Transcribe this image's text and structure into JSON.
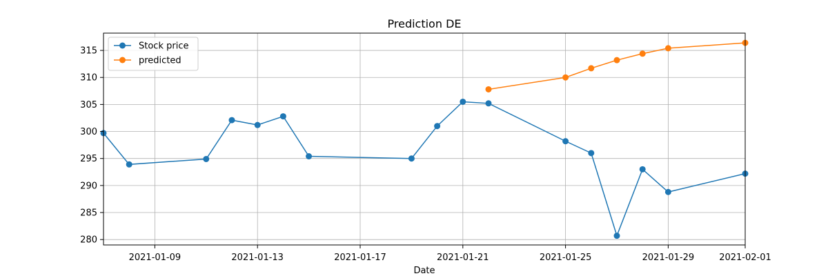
{
  "chart_data": {
    "type": "line",
    "title": "Prediction DE",
    "xlabel": "Date",
    "ylabel": "",
    "x_type": "date",
    "xlim": [
      "2021-01-07",
      "2021-02-01"
    ],
    "ylim": [
      279,
      318.2
    ],
    "x_ticks": [
      "2021-01-09",
      "2021-01-13",
      "2021-01-17",
      "2021-01-21",
      "2021-01-25",
      "2021-01-29",
      "2021-02-01"
    ],
    "y_ticks": [
      280,
      285,
      290,
      295,
      300,
      305,
      310,
      315
    ],
    "grid": true,
    "legend_position": "top-left",
    "series": [
      {
        "name": "Stock price",
        "color": "#1f77b4",
        "marker": "circle",
        "points": [
          {
            "x": "2021-01-07",
            "y": 299.7
          },
          {
            "x": "2021-01-08",
            "y": 293.9
          },
          {
            "x": "2021-01-11",
            "y": 294.9
          },
          {
            "x": "2021-01-12",
            "y": 302.1
          },
          {
            "x": "2021-01-13",
            "y": 301.2
          },
          {
            "x": "2021-01-14",
            "y": 302.8
          },
          {
            "x": "2021-01-15",
            "y": 295.4
          },
          {
            "x": "2021-01-19",
            "y": 295.0
          },
          {
            "x": "2021-01-20",
            "y": 301.0
          },
          {
            "x": "2021-01-21",
            "y": 305.5
          },
          {
            "x": "2021-01-22",
            "y": 305.2
          },
          {
            "x": "2021-01-25",
            "y": 298.2
          },
          {
            "x": "2021-01-26",
            "y": 296.0
          },
          {
            "x": "2021-01-27",
            "y": 280.7
          },
          {
            "x": "2021-01-28",
            "y": 293.0
          },
          {
            "x": "2021-01-29",
            "y": 288.8
          },
          {
            "x": "2021-02-01",
            "y": 292.2
          }
        ]
      },
      {
        "name": "predicted",
        "color": "#ff7f0e",
        "marker": "circle",
        "points": [
          {
            "x": "2021-01-22",
            "y": 307.8
          },
          {
            "x": "2021-01-25",
            "y": 310.0
          },
          {
            "x": "2021-01-26",
            "y": 311.7
          },
          {
            "x": "2021-01-27",
            "y": 313.2
          },
          {
            "x": "2021-01-28",
            "y": 314.4
          },
          {
            "x": "2021-01-29",
            "y": 315.4
          },
          {
            "x": "2021-02-01",
            "y": 316.4
          }
        ]
      }
    ]
  }
}
